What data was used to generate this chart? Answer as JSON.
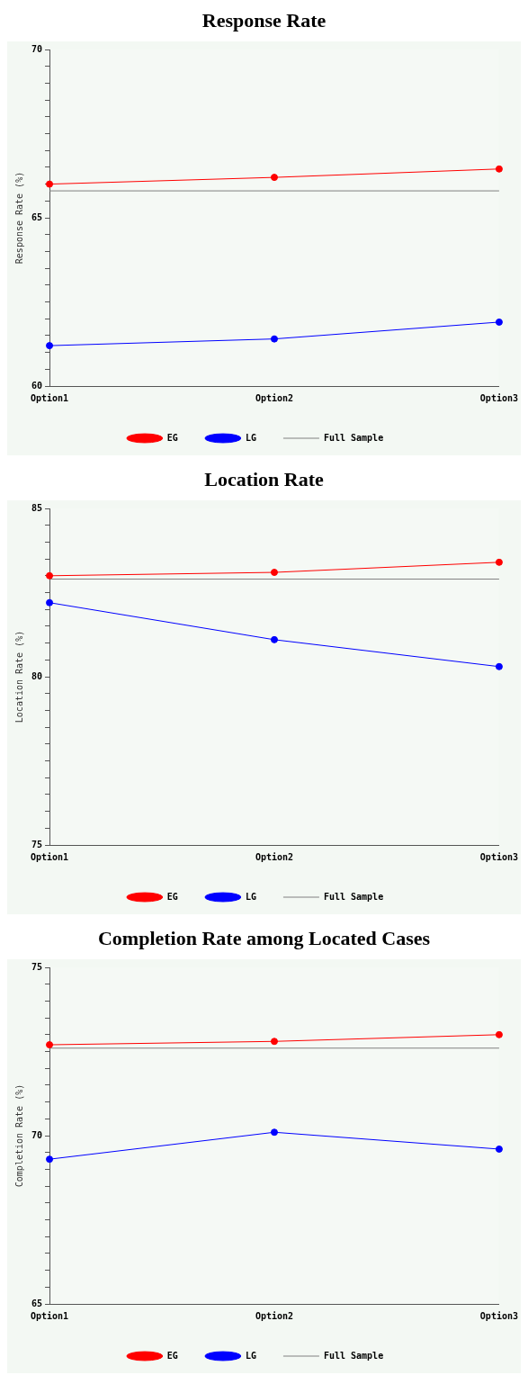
{
  "chart_data": [
    {
      "type": "line",
      "title": "Response Rate",
      "ylabel": "Response Rate (%)",
      "categories": [
        "Option1",
        "Option2",
        "Option3"
      ],
      "series": [
        {
          "name": "EG",
          "color": "#ff0000",
          "values": [
            66.0,
            66.2,
            66.45
          ],
          "marker": "circle"
        },
        {
          "name": "LG",
          "color": "#0000ff",
          "values": [
            61.2,
            61.4,
            61.9
          ],
          "marker": "circle"
        },
        {
          "name": "Full Sample",
          "color": "#808080",
          "values": [
            65.8,
            65.8,
            65.8
          ],
          "marker": "none"
        }
      ],
      "ylim": [
        60,
        70
      ],
      "yticks": [
        60,
        {
          "value": 60.5,
          "label": null
        },
        {
          "value": 61,
          "label": null
        },
        {
          "value": 61.5,
          "label": null
        },
        {
          "value": 62,
          "label": null
        },
        {
          "value": 62.5,
          "label": null
        },
        {
          "value": 63,
          "label": null
        },
        {
          "value": 63.5,
          "label": null
        },
        {
          "value": 64,
          "label": null
        },
        {
          "value": 64.5,
          "label": null
        },
        65,
        {
          "value": 65.5,
          "label": null
        },
        {
          "value": 66,
          "label": null
        },
        {
          "value": 66.5,
          "label": null
        },
        {
          "value": 67,
          "label": null
        },
        {
          "value": 67.5,
          "label": null
        },
        {
          "value": 68,
          "label": null
        },
        {
          "value": 68.5,
          "label": null
        },
        {
          "value": 69,
          "label": null
        },
        {
          "value": 69.5,
          "label": null
        },
        70
      ],
      "legend": "bottom",
      "grid": false
    },
    {
      "type": "line",
      "title": "Location Rate",
      "ylabel": "Location Rate (%)",
      "categories": [
        "Option1",
        "Option2",
        "Option3"
      ],
      "series": [
        {
          "name": "EG",
          "color": "#ff0000",
          "values": [
            83.0,
            83.1,
            83.4
          ],
          "marker": "circle"
        },
        {
          "name": "LG",
          "color": "#0000ff",
          "values": [
            82.2,
            81.1,
            80.3
          ],
          "marker": "circle"
        },
        {
          "name": "Full Sample",
          "color": "#808080",
          "values": [
            82.9,
            82.9,
            82.9
          ],
          "marker": "none"
        }
      ],
      "ylim": [
        75,
        85
      ],
      "yticks": [
        75,
        {
          "value": 75.5,
          "label": null
        },
        {
          "value": 76,
          "label": null
        },
        {
          "value": 76.5,
          "label": null
        },
        {
          "value": 77,
          "label": null
        },
        {
          "value": 77.5,
          "label": null
        },
        {
          "value": 78,
          "label": null
        },
        {
          "value": 78.5,
          "label": null
        },
        {
          "value": 79,
          "label": null
        },
        {
          "value": 79.5,
          "label": null
        },
        80,
        {
          "value": 80.5,
          "label": null
        },
        {
          "value": 81,
          "label": null
        },
        {
          "value": 81.5,
          "label": null
        },
        {
          "value": 82,
          "label": null
        },
        {
          "value": 82.5,
          "label": null
        },
        {
          "value": 83,
          "label": null
        },
        {
          "value": 83.5,
          "label": null
        },
        {
          "value": 84,
          "label": null
        },
        {
          "value": 84.5,
          "label": null
        },
        85
      ],
      "legend": "bottom",
      "grid": false
    },
    {
      "type": "line",
      "title": "Completion Rate among Located Cases",
      "ylabel": "Completion Rate (%)",
      "categories": [
        "Option1",
        "Option2",
        "Option3"
      ],
      "series": [
        {
          "name": "EG",
          "color": "#ff0000",
          "values": [
            72.7,
            72.8,
            73.0
          ],
          "marker": "circle"
        },
        {
          "name": "LG",
          "color": "#0000ff",
          "values": [
            69.3,
            70.1,
            69.6
          ],
          "marker": "circle"
        },
        {
          "name": "Full Sample",
          "color": "#808080",
          "values": [
            72.6,
            72.6,
            72.6
          ],
          "marker": "none"
        }
      ],
      "ylim": [
        65,
        75
      ],
      "yticks": [
        65,
        {
          "value": 65.5,
          "label": null
        },
        {
          "value": 66,
          "label": null
        },
        {
          "value": 66.5,
          "label": null
        },
        {
          "value": 67,
          "label": null
        },
        {
          "value": 67.5,
          "label": null
        },
        {
          "value": 68,
          "label": null
        },
        {
          "value": 68.5,
          "label": null
        },
        {
          "value": 69,
          "label": null
        },
        {
          "value": 69.5,
          "label": null
        },
        70,
        {
          "value": 70.5,
          "label": null
        },
        {
          "value": 71,
          "label": null
        },
        {
          "value": 71.5,
          "label": null
        },
        {
          "value": 72,
          "label": null
        },
        {
          "value": 72.5,
          "label": null
        },
        {
          "value": 73,
          "label": null
        },
        {
          "value": 73.5,
          "label": null
        },
        {
          "value": 74,
          "label": null
        },
        {
          "value": 74.5,
          "label": null
        },
        75
      ],
      "legend": "bottom",
      "grid": false
    }
  ]
}
